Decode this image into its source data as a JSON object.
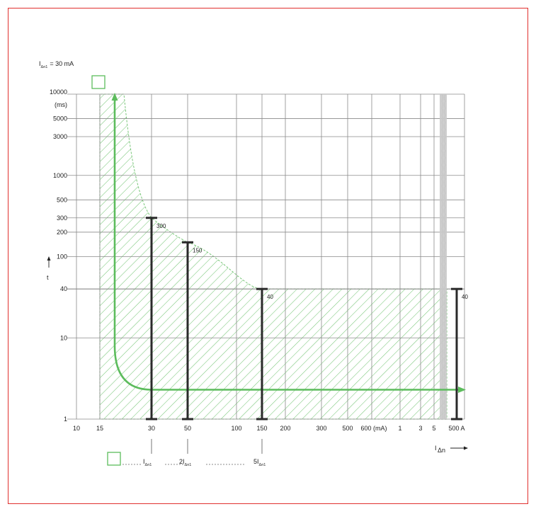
{
  "chart_data": {
    "type": "line",
    "header": {
      "symbol": "I",
      "subscript": "Δn1",
      "rest": "= 30 mA"
    },
    "ylabel": "t",
    "y_unit": "(ms)",
    "xlabel_symbol": "I",
    "xlabel_subscript": "Δn",
    "y_scale": "log",
    "ylim": [
      1,
      10000
    ],
    "yticks": [
      {
        "v": 1,
        "label": "1"
      },
      {
        "v": 10,
        "label": "10"
      },
      {
        "v": 40,
        "label": "40"
      },
      {
        "v": 100,
        "label": "100"
      },
      {
        "v": 200,
        "label": "200"
      },
      {
        "v": 300,
        "label": "300"
      },
      {
        "v": 500,
        "label": "500"
      },
      {
        "v": 1000,
        "label": "1000"
      },
      {
        "v": 3000,
        "label": "3000"
      },
      {
        "v": 5000,
        "label": "5000"
      },
      {
        "v": 10000,
        "label": "10000"
      }
    ],
    "xticks": [
      "10",
      "15",
      "30",
      "50",
      "100",
      "150",
      "200",
      "300",
      "500",
      "600 (mA)",
      "1",
      "3",
      "5",
      "500 A"
    ],
    "vertical_grid": [
      "10",
      "15",
      "30",
      "50",
      "100",
      "150",
      "200",
      "300",
      "500",
      "600 (mA)",
      "1",
      "3",
      "5"
    ],
    "tripping_curve": [
      {
        "x": "15",
        "t": 10000
      },
      {
        "x": "30",
        "t": 300
      },
      {
        "x": "50",
        "t": 150
      },
      {
        "x": "150",
        "t": 40
      },
      {
        "x": "500 A",
        "t": 40
      }
    ],
    "characteristic_curve": [
      {
        "x": "15",
        "t": 10000
      },
      {
        "x": "15",
        "t": 8
      },
      {
        "x": "30",
        "t": 2.3
      },
      {
        "x": "500 A",
        "t": 2.3
      }
    ],
    "bars": [
      {
        "x": "30",
        "t": 300,
        "label": "300"
      },
      {
        "x": "50",
        "t": 150,
        "label": "150"
      },
      {
        "x": "150",
        "t": 40,
        "label": "40"
      },
      {
        "x": "500 A",
        "t": 40,
        "label": "40"
      }
    ],
    "multiples": [
      {
        "x": "30",
        "prefix": "",
        "subscript": "Δn1"
      },
      {
        "x": "50",
        "prefix": "2",
        "subscript": "Δn1"
      },
      {
        "x": "150",
        "prefix": "5",
        "subscript": "Δn1"
      }
    ],
    "colors": {
      "curve": "#5cbc5c",
      "hatch": "#79c679",
      "bars": "#2a2a2a",
      "grid": "#8a8a8a",
      "frame": "#e0302e",
      "break_band": "#c9c9c9"
    }
  }
}
